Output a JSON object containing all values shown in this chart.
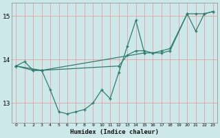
{
  "xlabel": "Humidex (Indice chaleur)",
  "bg_color": "#cde8e8",
  "grid_color": "#e8a0a0",
  "line_color": "#2e7d6e",
  "x": [
    0,
    1,
    2,
    3,
    4,
    5,
    6,
    7,
    8,
    9,
    10,
    11,
    12,
    13,
    14,
    15,
    16,
    17,
    18,
    19,
    20,
    21,
    22,
    23
  ],
  "line1_x": [
    0,
    1,
    2,
    3,
    12,
    13,
    14,
    15,
    16,
    17,
    18,
    20,
    21,
    22,
    23
  ],
  "line1_y": [
    13.85,
    13.95,
    13.75,
    13.75,
    13.85,
    14.1,
    14.2,
    14.2,
    14.15,
    14.2,
    14.25,
    15.05,
    14.65,
    15.05,
    15.1
  ],
  "line2_x": [
    0,
    3,
    4,
    5,
    6,
    7,
    8,
    9,
    10,
    11,
    12,
    13,
    14,
    15
  ],
  "line2_y": [
    13.85,
    13.75,
    13.3,
    12.8,
    12.75,
    12.8,
    12.85,
    13.0,
    13.3,
    13.1,
    13.7,
    14.3,
    14.9,
    14.15
  ],
  "line3_x": [
    0,
    2,
    3,
    15,
    16,
    17,
    18,
    20,
    21,
    22,
    23
  ],
  "line3_y": [
    13.85,
    13.75,
    13.75,
    14.15,
    14.15,
    14.15,
    14.2,
    15.05,
    15.05,
    15.05,
    15.1
  ],
  "ylim": [
    12.55,
    15.3
  ],
  "yticks": [
    13,
    14,
    15
  ],
  "xlim": [
    -0.5,
    23.5
  ]
}
